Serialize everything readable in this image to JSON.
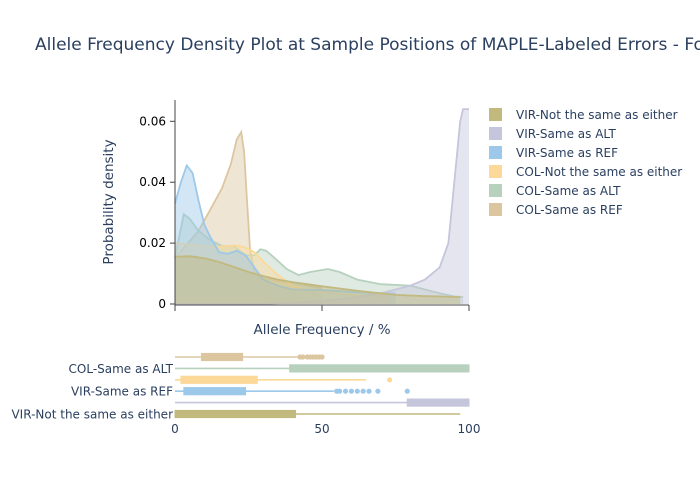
{
  "chart_data": {
    "type": "area",
    "title": "Allele Frequency Density Plot at Sample Positions of MAPLE-Labeled Errors - Fo",
    "xlabel": "Allele Frequency / %",
    "ylabel": "Probability density",
    "xlim": [
      0,
      100
    ],
    "ylim": [
      0,
      0.067
    ],
    "yticks": [
      "0",
      "0.02",
      "0.04",
      "0.06"
    ],
    "xticks": [
      "0",
      "50",
      "100"
    ],
    "yticks_values": [
      0,
      0.02,
      0.04,
      0.06
    ],
    "xticks_values": [
      0,
      50,
      100
    ],
    "legend_position": "right",
    "grid": false,
    "series": [
      {
        "name": "VIR-Not the same as either",
        "color": "#c2b97f",
        "density": [
          [
            0,
            0.0155
          ],
          [
            5,
            0.0157
          ],
          [
            10,
            0.015
          ],
          [
            15,
            0.0138
          ],
          [
            20,
            0.0122
          ],
          [
            25,
            0.0105
          ],
          [
            30,
            0.0092
          ],
          [
            35,
            0.008
          ],
          [
            40,
            0.0072
          ],
          [
            45,
            0.0065
          ],
          [
            50,
            0.0058
          ],
          [
            55,
            0.0052
          ],
          [
            60,
            0.0046
          ],
          [
            65,
            0.004
          ],
          [
            70,
            0.0035
          ],
          [
            75,
            0.003
          ],
          [
            80,
            0.0028
          ],
          [
            85,
            0.0026
          ],
          [
            90,
            0.0025
          ],
          [
            95,
            0.0023
          ],
          [
            97,
            0.0023
          ]
        ],
        "box": {
          "min": 0,
          "q1": 0,
          "median": 20,
          "q3": 41,
          "max": 97,
          "outliers": []
        }
      },
      {
        "name": "VIR-Same as ALT",
        "color": "#c5c5db",
        "density": [
          [
            0,
            0.0
          ],
          [
            30,
            0.0
          ],
          [
            50,
            0.001
          ],
          [
            60,
            0.002
          ],
          [
            70,
            0.0035
          ],
          [
            80,
            0.006
          ],
          [
            85,
            0.008
          ],
          [
            90,
            0.012
          ],
          [
            93,
            0.02
          ],
          [
            95,
            0.04
          ],
          [
            97,
            0.06
          ],
          [
            98,
            0.064
          ],
          [
            100,
            0.064
          ]
        ],
        "box": {
          "min": 0,
          "q1": 79,
          "median": 99,
          "q3": 100,
          "max": 100,
          "outliers": []
        }
      },
      {
        "name": "VIR-Same as REF",
        "color": "#9cc8ea",
        "density": [
          [
            0,
            0.033
          ],
          [
            2,
            0.04
          ],
          [
            4,
            0.0455
          ],
          [
            6,
            0.043
          ],
          [
            8,
            0.034
          ],
          [
            10,
            0.026
          ],
          [
            12,
            0.022
          ],
          [
            15,
            0.017
          ],
          [
            18,
            0.0165
          ],
          [
            21,
            0.0175
          ],
          [
            24,
            0.016
          ],
          [
            27,
            0.012
          ],
          [
            30,
            0.008
          ],
          [
            35,
            0.006
          ],
          [
            40,
            0.0048
          ],
          [
            50,
            0.0046
          ],
          [
            60,
            0.004
          ],
          [
            70,
            0.0035
          ],
          [
            75,
            0.0035
          ]
        ],
        "box": {
          "min": 0,
          "q1": 3,
          "median": 12,
          "q3": 24,
          "max": 54,
          "outliers": [
            55,
            56,
            58,
            60,
            62,
            64,
            66,
            69,
            79
          ]
        }
      },
      {
        "name": "COL-Not the same as either",
        "color": "#fcd998",
        "density": [
          [
            0,
            0.02
          ],
          [
            5,
            0.0195
          ],
          [
            10,
            0.019
          ],
          [
            15,
            0.0188
          ],
          [
            18,
            0.019
          ],
          [
            21,
            0.0192
          ],
          [
            24,
            0.0185
          ],
          [
            27,
            0.017
          ],
          [
            30,
            0.014
          ],
          [
            35,
            0.0095
          ],
          [
            40,
            0.006
          ],
          [
            45,
            0.0045
          ],
          [
            50,
            0.004
          ],
          [
            55,
            0.0035
          ],
          [
            60,
            0.003
          ],
          [
            65,
            0.0027
          ],
          [
            70,
            0.0025
          ],
          [
            73,
            0.0025
          ]
        ],
        "box": {
          "min": 0,
          "q1": 2,
          "median": 14,
          "q3": 28,
          "max": 65,
          "outliers": [
            73
          ]
        }
      },
      {
        "name": "COL-Same as ALT",
        "color": "#b7d1be",
        "density": [
          [
            0,
            0.015
          ],
          [
            1,
            0.02
          ],
          [
            3,
            0.0295
          ],
          [
            5,
            0.028
          ],
          [
            8,
            0.024
          ],
          [
            12,
            0.021
          ],
          [
            16,
            0.019
          ],
          [
            20,
            0.019
          ],
          [
            24,
            0.016
          ],
          [
            27,
            0.016
          ],
          [
            29,
            0.018
          ],
          [
            31,
            0.0175
          ],
          [
            34,
            0.015
          ],
          [
            38,
            0.0115
          ],
          [
            42,
            0.0095
          ],
          [
            46,
            0.0105
          ],
          [
            52,
            0.0115
          ],
          [
            56,
            0.0105
          ],
          [
            62,
            0.008
          ],
          [
            70,
            0.0065
          ],
          [
            80,
            0.006
          ],
          [
            90,
            0.0035
          ],
          [
            95,
            0.0025
          ],
          [
            98,
            0.0023
          ]
        ],
        "box": {
          "min": 0,
          "q1": 39,
          "median": 96,
          "q3": 100,
          "max": 100,
          "outliers": []
        }
      },
      {
        "name": "COL-Same as REF",
        "color": "#dcc6a0",
        "density": [
          [
            0,
            0.015
          ],
          [
            4,
            0.0195
          ],
          [
            8,
            0.024
          ],
          [
            12,
            0.031
          ],
          [
            16,
            0.038
          ],
          [
            19,
            0.046
          ],
          [
            21,
            0.054
          ],
          [
            22.5,
            0.0565
          ],
          [
            23.5,
            0.05
          ],
          [
            24.5,
            0.034
          ],
          [
            25.5,
            0.018
          ],
          [
            27,
            0.0105
          ],
          [
            30,
            0.0085
          ],
          [
            35,
            0.0075
          ],
          [
            40,
            0.007
          ],
          [
            45,
            0.006
          ],
          [
            50,
            0.0052
          ]
        ],
        "box": {
          "min": 0,
          "q1": 9,
          "median": 15,
          "q3": 23,
          "max": 42,
          "outliers": [
            42.5,
            43.5,
            45,
            46,
            47,
            48,
            49,
            50
          ]
        }
      }
    ],
    "box_axis_labels": [
      "COL-Same as ALT",
      "VIR-Same as REF",
      "VIR-Not the same as either"
    ],
    "box_order_top_to_bottom": [
      "COL-Same as REF",
      "COL-Same as ALT",
      "COL-Not the same as either",
      "VIR-Same as REF",
      "VIR-Same as ALT",
      "VIR-Not the same as either"
    ]
  }
}
